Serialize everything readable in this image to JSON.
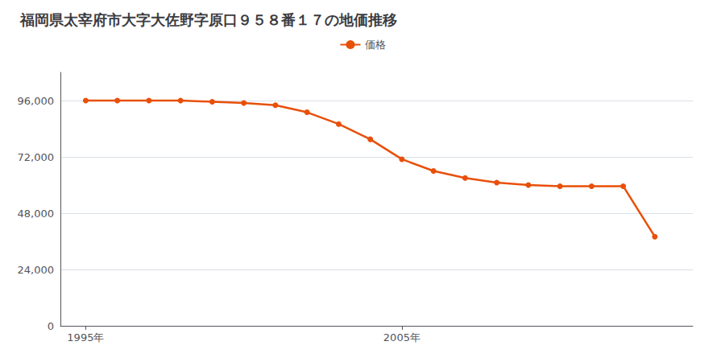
{
  "chart_data": {
    "type": "line",
    "title": "福岡県太宰府市大字大佐野字原口９５８番１７の地価推移",
    "x": [
      1995,
      1996,
      1997,
      1998,
      1999,
      2000,
      2001,
      2002,
      2003,
      2004,
      2005,
      2006,
      2007,
      2008,
      2009,
      2010,
      2011,
      2012,
      2013
    ],
    "series": [
      {
        "name": "価格",
        "color": "#E8500A",
        "marker": "circle",
        "values": [
          96000,
          96000,
          96000,
          96000,
          95500,
          95000,
          94000,
          91000,
          86000,
          79500,
          71000,
          66000,
          63000,
          61000,
          60000,
          59500,
          59500,
          59500,
          38000
        ]
      }
    ],
    "xlim": [
      1994.2,
      2014.2
    ],
    "xticks": [
      {
        "value": 1995,
        "label": "1995年"
      },
      {
        "value": 2005,
        "label": "2005年"
      }
    ],
    "ylim": [
      0,
      108000
    ],
    "yticks": [
      0,
      {
        "value": 24000,
        "label": "24,000"
      },
      {
        "value": 48000,
        "label": "48,000"
      },
      {
        "value": 72000,
        "label": "72,000"
      },
      {
        "value": 96000,
        "label": "96,000"
      }
    ],
    "grid": true,
    "legend": "top"
  }
}
